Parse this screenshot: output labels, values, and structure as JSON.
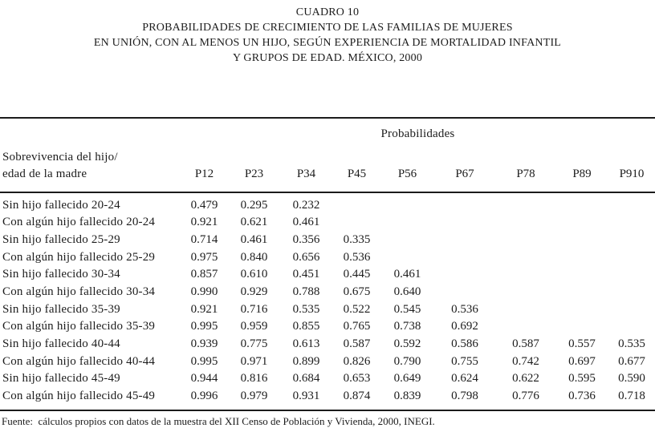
{
  "title": {
    "lines": [
      "CUADRO 10",
      "PROBABILIDADES DE CRECIMIENTO DE LAS FAMILIAS DE MUJERES",
      "EN UNIÓN, CON AL MENOS UN HIJO, SEGÚN EXPERIENCIA DE MORTALIDAD INFANTIL",
      "Y GRUPOS DE EDAD. MÉXICO, 2000"
    ]
  },
  "table": {
    "group_header": "Probabilidades",
    "stub_header": [
      "Sobrevivencia del hijo/",
      "edad de la madre"
    ],
    "columns": [
      "P12",
      "P23",
      "P34",
      "P45",
      "P56",
      "P67",
      "P78",
      "P89",
      "P910"
    ],
    "rows": [
      {
        "label": "Sin hijo fallecido 20-24",
        "values": [
          "0.479",
          "0.295",
          "0.232",
          "",
          "",
          "",
          "",
          "",
          ""
        ]
      },
      {
        "label": "Con algún hijo fallecido 20-24",
        "values": [
          "0.921",
          "0.621",
          "0.461",
          "",
          "",
          "",
          "",
          "",
          ""
        ]
      },
      {
        "label": "Sin hijo fallecido 25-29",
        "values": [
          "0.714",
          "0.461",
          "0.356",
          "0.335",
          "",
          "",
          "",
          "",
          ""
        ]
      },
      {
        "label": "Con algún hijo fallecido 25-29",
        "values": [
          "0.975",
          "0.840",
          "0.656",
          "0.536",
          "",
          "",
          "",
          "",
          ""
        ]
      },
      {
        "label": "Sin hijo fallecido 30-34",
        "values": [
          "0.857",
          "0.610",
          "0.451",
          "0.445",
          "0.461",
          "",
          "",
          "",
          ""
        ]
      },
      {
        "label": "Con algún hijo fallecido 30-34",
        "values": [
          "0.990",
          "0.929",
          "0.788",
          "0.675",
          "0.640",
          "",
          "",
          "",
          ""
        ]
      },
      {
        "label": "Sin hijo fallecido 35-39",
        "values": [
          "0.921",
          "0.716",
          "0.535",
          "0.522",
          "0.545",
          "0.536",
          "",
          "",
          ""
        ]
      },
      {
        "label": "Con algún hijo fallecido 35-39",
        "values": [
          "0.995",
          "0.959",
          "0.855",
          "0.765",
          "0.738",
          "0.692",
          "",
          "",
          ""
        ]
      },
      {
        "label": "Sin hijo fallecido 40-44",
        "values": [
          "0.939",
          "0.775",
          "0.613",
          "0.587",
          "0.592",
          "0.586",
          "0.587",
          "0.557",
          "0.535"
        ]
      },
      {
        "label": "Con algún hijo fallecido 40-44",
        "values": [
          "0.995",
          "0.971",
          "0.899",
          "0.826",
          "0.790",
          "0.755",
          "0.742",
          "0.697",
          "0.677"
        ]
      },
      {
        "label": "Sin hijo fallecido 45-49",
        "values": [
          "0.944",
          "0.816",
          "0.684",
          "0.653",
          "0.649",
          "0.624",
          "0.622",
          "0.595",
          "0.590"
        ]
      },
      {
        "label": "Con algún hijo fallecido 45-49",
        "values": [
          "0.996",
          "0.979",
          "0.931",
          "0.874",
          "0.839",
          "0.798",
          "0.776",
          "0.736",
          "0.718"
        ]
      }
    ]
  },
  "footer": {
    "source": "Fuente:  cálculos propios con datos de la muestra del XII Censo de Población y Vivienda, 2000, INEGI."
  },
  "colors": {
    "background": "#ffffff",
    "text": "#1c1c1c",
    "rule": "#1b1b1b"
  }
}
